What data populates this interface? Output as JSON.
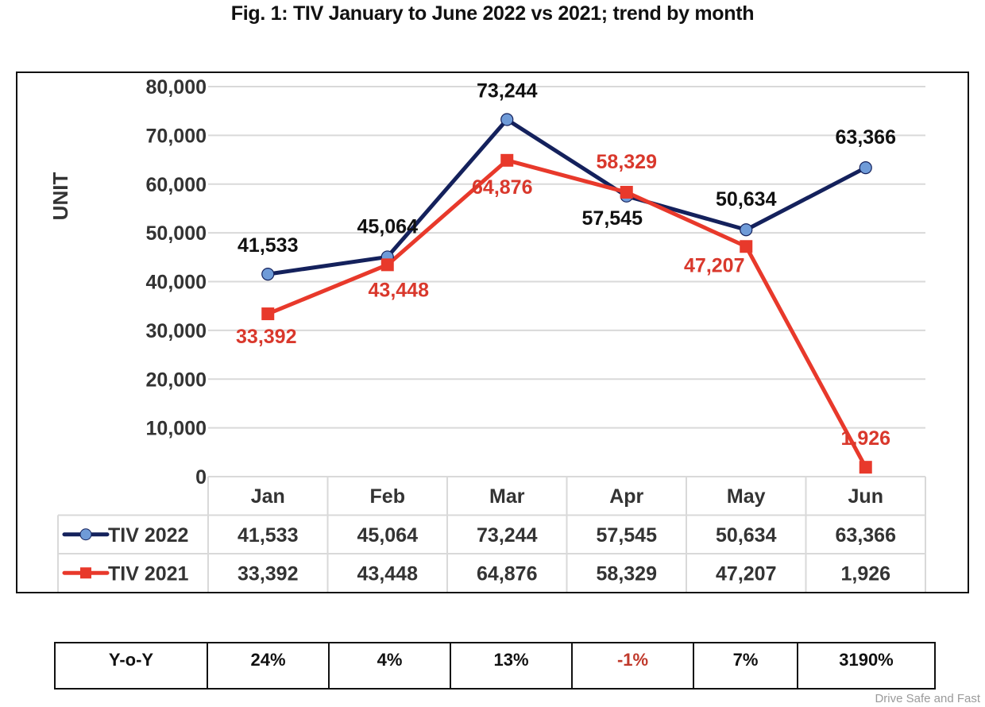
{
  "chart_data": {
    "type": "line",
    "title": "Fig. 1: TIV January to June 2022 vs 2021; trend by month",
    "xlabel": "",
    "ylabel": "UNIT",
    "ylim": [
      0,
      80000
    ],
    "yticks": [
      0,
      10000,
      20000,
      30000,
      40000,
      50000,
      60000,
      70000,
      80000
    ],
    "ytick_labels": [
      "0",
      "10,000",
      "20,000",
      "30,000",
      "40,000",
      "50,000",
      "60,000",
      "70,000",
      "80,000"
    ],
    "grid": true,
    "legend": "data-table-left",
    "categories": [
      "Jan",
      "Feb",
      "Mar",
      "Apr",
      "May",
      "Jun"
    ],
    "series": [
      {
        "name": "TIV 2022",
        "values": [
          41533,
          45064,
          73244,
          57545,
          50634,
          63366
        ],
        "labels": [
          "41,533",
          "45,064",
          "73,244",
          "57,545",
          "50,634",
          "63,366"
        ],
        "line_color": "#14215c",
        "marker_color": "#6f9bd8",
        "marker": "circle",
        "label_color": "#111111"
      },
      {
        "name": "TIV 2021",
        "values": [
          33392,
          43448,
          64876,
          58329,
          47207,
          1926
        ],
        "labels": [
          "33,392",
          "43,448",
          "64,876",
          "58,329",
          "47,207",
          "1,926"
        ],
        "line_color": "#e8392b",
        "marker_color": "#e8392b",
        "marker": "square",
        "label_color": "#d9382c"
      }
    ]
  },
  "yoy": {
    "label": "Y-o-Y",
    "values": [
      "24%",
      "4%",
      "13%",
      "-1%",
      "7%",
      "3190%"
    ],
    "negative_color": "#c0392b"
  },
  "watermark": "Drive Safe and Fast"
}
